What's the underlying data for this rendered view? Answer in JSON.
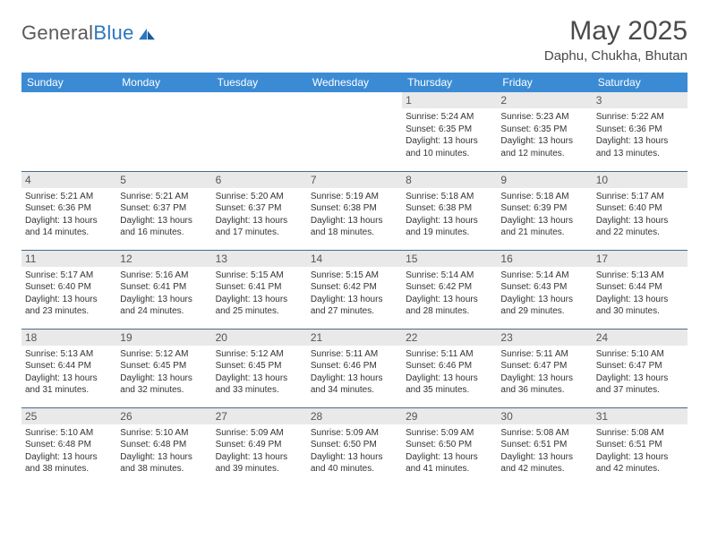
{
  "logo": {
    "word1": "General",
    "word2": "Blue"
  },
  "title": "May 2025",
  "location": "Daphu, Chukha, Bhutan",
  "colors": {
    "header_bg": "#3b8bd4",
    "header_text": "#ffffff",
    "daynum_bg": "#e9e9e9",
    "row_border": "#4a6a8a",
    "logo_gray": "#5a5a5a",
    "logo_blue": "#2b77c0"
  },
  "weekdays": [
    "Sunday",
    "Monday",
    "Tuesday",
    "Wednesday",
    "Thursday",
    "Friday",
    "Saturday"
  ],
  "weeks": [
    [
      {
        "n": "",
        "t": ""
      },
      {
        "n": "",
        "t": ""
      },
      {
        "n": "",
        "t": ""
      },
      {
        "n": "",
        "t": ""
      },
      {
        "n": "1",
        "t": "Sunrise: 5:24 AM\nSunset: 6:35 PM\nDaylight: 13 hours and 10 minutes."
      },
      {
        "n": "2",
        "t": "Sunrise: 5:23 AM\nSunset: 6:35 PM\nDaylight: 13 hours and 12 minutes."
      },
      {
        "n": "3",
        "t": "Sunrise: 5:22 AM\nSunset: 6:36 PM\nDaylight: 13 hours and 13 minutes."
      }
    ],
    [
      {
        "n": "4",
        "t": "Sunrise: 5:21 AM\nSunset: 6:36 PM\nDaylight: 13 hours and 14 minutes."
      },
      {
        "n": "5",
        "t": "Sunrise: 5:21 AM\nSunset: 6:37 PM\nDaylight: 13 hours and 16 minutes."
      },
      {
        "n": "6",
        "t": "Sunrise: 5:20 AM\nSunset: 6:37 PM\nDaylight: 13 hours and 17 minutes."
      },
      {
        "n": "7",
        "t": "Sunrise: 5:19 AM\nSunset: 6:38 PM\nDaylight: 13 hours and 18 minutes."
      },
      {
        "n": "8",
        "t": "Sunrise: 5:18 AM\nSunset: 6:38 PM\nDaylight: 13 hours and 19 minutes."
      },
      {
        "n": "9",
        "t": "Sunrise: 5:18 AM\nSunset: 6:39 PM\nDaylight: 13 hours and 21 minutes."
      },
      {
        "n": "10",
        "t": "Sunrise: 5:17 AM\nSunset: 6:40 PM\nDaylight: 13 hours and 22 minutes."
      }
    ],
    [
      {
        "n": "11",
        "t": "Sunrise: 5:17 AM\nSunset: 6:40 PM\nDaylight: 13 hours and 23 minutes."
      },
      {
        "n": "12",
        "t": "Sunrise: 5:16 AM\nSunset: 6:41 PM\nDaylight: 13 hours and 24 minutes."
      },
      {
        "n": "13",
        "t": "Sunrise: 5:15 AM\nSunset: 6:41 PM\nDaylight: 13 hours and 25 minutes."
      },
      {
        "n": "14",
        "t": "Sunrise: 5:15 AM\nSunset: 6:42 PM\nDaylight: 13 hours and 27 minutes."
      },
      {
        "n": "15",
        "t": "Sunrise: 5:14 AM\nSunset: 6:42 PM\nDaylight: 13 hours and 28 minutes."
      },
      {
        "n": "16",
        "t": "Sunrise: 5:14 AM\nSunset: 6:43 PM\nDaylight: 13 hours and 29 minutes."
      },
      {
        "n": "17",
        "t": "Sunrise: 5:13 AM\nSunset: 6:44 PM\nDaylight: 13 hours and 30 minutes."
      }
    ],
    [
      {
        "n": "18",
        "t": "Sunrise: 5:13 AM\nSunset: 6:44 PM\nDaylight: 13 hours and 31 minutes."
      },
      {
        "n": "19",
        "t": "Sunrise: 5:12 AM\nSunset: 6:45 PM\nDaylight: 13 hours and 32 minutes."
      },
      {
        "n": "20",
        "t": "Sunrise: 5:12 AM\nSunset: 6:45 PM\nDaylight: 13 hours and 33 minutes."
      },
      {
        "n": "21",
        "t": "Sunrise: 5:11 AM\nSunset: 6:46 PM\nDaylight: 13 hours and 34 minutes."
      },
      {
        "n": "22",
        "t": "Sunrise: 5:11 AM\nSunset: 6:46 PM\nDaylight: 13 hours and 35 minutes."
      },
      {
        "n": "23",
        "t": "Sunrise: 5:11 AM\nSunset: 6:47 PM\nDaylight: 13 hours and 36 minutes."
      },
      {
        "n": "24",
        "t": "Sunrise: 5:10 AM\nSunset: 6:47 PM\nDaylight: 13 hours and 37 minutes."
      }
    ],
    [
      {
        "n": "25",
        "t": "Sunrise: 5:10 AM\nSunset: 6:48 PM\nDaylight: 13 hours and 38 minutes."
      },
      {
        "n": "26",
        "t": "Sunrise: 5:10 AM\nSunset: 6:48 PM\nDaylight: 13 hours and 38 minutes."
      },
      {
        "n": "27",
        "t": "Sunrise: 5:09 AM\nSunset: 6:49 PM\nDaylight: 13 hours and 39 minutes."
      },
      {
        "n": "28",
        "t": "Sunrise: 5:09 AM\nSunset: 6:50 PM\nDaylight: 13 hours and 40 minutes."
      },
      {
        "n": "29",
        "t": "Sunrise: 5:09 AM\nSunset: 6:50 PM\nDaylight: 13 hours and 41 minutes."
      },
      {
        "n": "30",
        "t": "Sunrise: 5:08 AM\nSunset: 6:51 PM\nDaylight: 13 hours and 42 minutes."
      },
      {
        "n": "31",
        "t": "Sunrise: 5:08 AM\nSunset: 6:51 PM\nDaylight: 13 hours and 42 minutes."
      }
    ]
  ]
}
